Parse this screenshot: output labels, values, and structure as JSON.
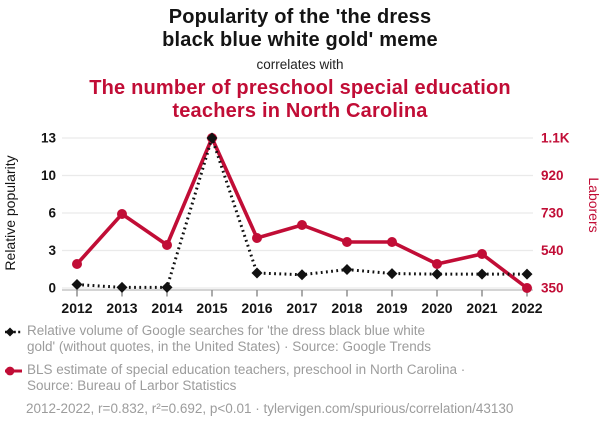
{
  "header": {
    "title_black": "Popularity of the 'the dress\nblack blue white gold' meme",
    "connector": "correlates with",
    "title_red": "The number of preschool special education\nteachers in North Carolina"
  },
  "colors": {
    "accent_red": "#c10d36",
    "text_black": "#141414",
    "legend_gray": "#9c9c9c",
    "gridline": "#eaeaea",
    "axis_line": "#c6c6c6",
    "tick_mark": "#8f8f8f"
  },
  "chart_data": {
    "type": "line",
    "x": [
      2012,
      2013,
      2014,
      2015,
      2016,
      2017,
      2018,
      2019,
      2020,
      2021,
      2022
    ],
    "x_tick_labels": [
      "2012",
      "2013",
      "2014",
      "2015",
      "2016",
      "2017",
      "2018",
      "2019",
      "2020",
      "2021",
      "2022"
    ],
    "left_axis": {
      "label": "Relative popularity",
      "range": [
        0,
        13
      ],
      "tick_labels_top_to_bottom": [
        "13",
        "10",
        "6",
        "3",
        "0"
      ]
    },
    "right_axis": {
      "label": "Laborers",
      "range": [
        350,
        1100
      ],
      "tick_labels_top_to_bottom": [
        "1.1K",
        "920",
        "730",
        "540",
        "350"
      ]
    },
    "grid": "horizontal",
    "legend_position": "bottom",
    "series": [
      {
        "name": "Relative volume of Google searches for 'the dress black blue white gold'",
        "source": "Google Trends",
        "axis": "left",
        "color": "#111111",
        "line_style": "dotted",
        "marker": "diamond",
        "values": [
          0.3,
          0.05,
          0.05,
          13,
          1.3,
          1.15,
          1.6,
          1.25,
          1.2,
          1.2,
          1.2
        ]
      },
      {
        "name": "BLS estimate of special education teachers, preschool in North Carolina",
        "source": "Bureau of Larbor Statistics",
        "axis": "right",
        "color": "#c10d36",
        "line_style": "solid",
        "marker": "circle",
        "values": [
          470,
          720,
          565,
          1100,
          600,
          665,
          580,
          580,
          470,
          520,
          350
        ]
      }
    ]
  },
  "legend": {
    "series1": "Relative volume of Google searches for 'the dress black blue white\ngold' (without quotes, in the United States) · Source: Google Trends",
    "series2": "BLS estimate of special education teachers, preschool in North Carolina ·\nSource: Bureau of Larbor Statistics",
    "footer": "2012-2022, r=0.832, r²=0.692, p<0.01 · tylervigen.com/spurious/correlation/43130"
  }
}
